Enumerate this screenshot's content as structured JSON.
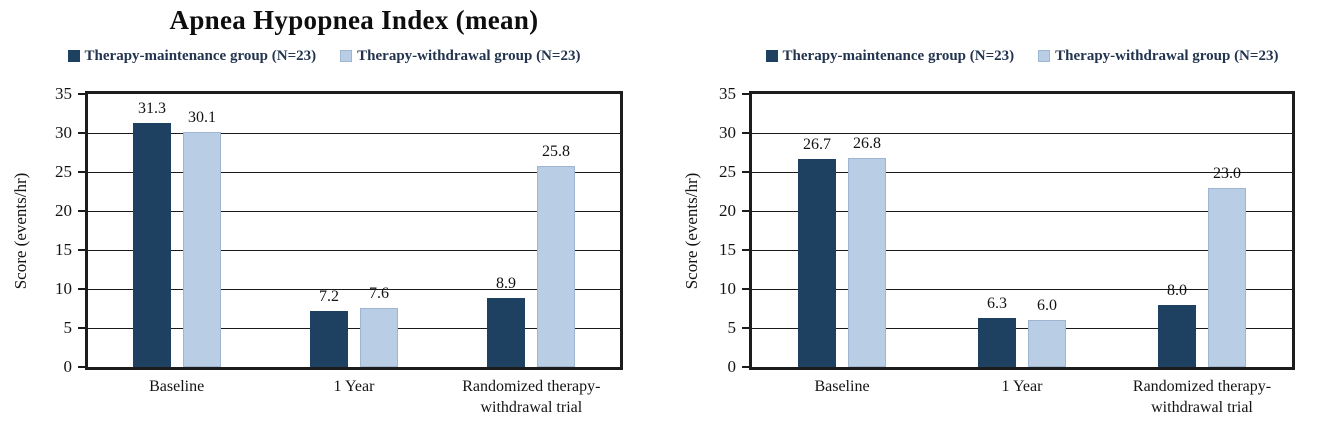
{
  "figure": {
    "background": "#ffffff"
  },
  "colors": {
    "maintenance": "#1F4161",
    "withdrawal": "#B9CDE5",
    "withdrawal_border": "#9FB6D2",
    "legend_text": "#22344F",
    "frame": "#1C1C1C",
    "grid": "#1A1A1A",
    "label_text": "#131313"
  },
  "chart_data": [
    {
      "type": "bar",
      "title": "Apnea Hypopnea Index (mean)",
      "ylabel": "Score (events/hr)",
      "xlabel": "",
      "ylim": [
        0,
        35
      ],
      "yticks": [
        0,
        5,
        10,
        15,
        20,
        25,
        30,
        35
      ],
      "grid": true,
      "legend_position": "top",
      "categories": [
        "Baseline",
        "1 Year",
        "Randomized therapy-\nwithdrawal trial"
      ],
      "series": [
        {
          "name": "Therapy-maintenance group (N=23)",
          "color_key": "maintenance",
          "values": [
            31.3,
            7.2,
            8.9
          ]
        },
        {
          "name": "Therapy-withdrawal group (N=23)",
          "color_key": "withdrawal",
          "values": [
            30.1,
            7.6,
            25.8
          ]
        }
      ]
    },
    {
      "type": "bar",
      "title": "",
      "ylabel": "Score (events/hr)",
      "xlabel": "",
      "ylim": [
        0,
        35
      ],
      "yticks": [
        0,
        5,
        10,
        15,
        20,
        25,
        30,
        35
      ],
      "grid": true,
      "legend_position": "top",
      "categories": [
        "Baseline",
        "1 Year",
        "Randomized therapy-\nwithdrawal trial"
      ],
      "series": [
        {
          "name": "Therapy-maintenance group (N=23)",
          "color_key": "maintenance",
          "values": [
            26.7,
            6.3,
            8.0
          ]
        },
        {
          "name": "Therapy-withdrawal group (N=23)",
          "color_key": "withdrawal",
          "values": [
            26.8,
            6.0,
            23.0
          ]
        }
      ]
    }
  ]
}
